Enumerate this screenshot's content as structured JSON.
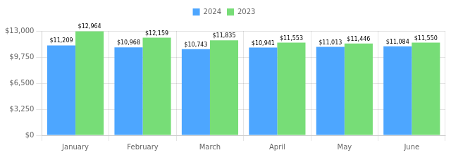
{
  "chart_data": {
    "type": "bar",
    "categories": [
      "January",
      "February",
      "March",
      "April",
      "May",
      "June"
    ],
    "series": [
      {
        "name": "2024",
        "color": "#4da6ff",
        "values": [
          11209,
          10968,
          10743,
          10941,
          11013,
          11084
        ],
        "value_labels": [
          "$11,209",
          "$10,968",
          "$10,743",
          "$10,941",
          "$11,013",
          "$11,084"
        ]
      },
      {
        "name": "2023",
        "color": "#77dd77",
        "values": [
          12964,
          12159,
          11835,
          11553,
          11446,
          11550
        ],
        "value_labels": [
          "$12,964",
          "$12,159",
          "$11,835",
          "$11,553",
          "$11,446",
          "$11,550"
        ]
      }
    ],
    "ylim": [
      0,
      13000
    ],
    "yticks": [
      {
        "value": 0,
        "label": "$0"
      },
      {
        "value": 3250,
        "label": "$3,250"
      },
      {
        "value": 6500,
        "label": "$6,500"
      },
      {
        "value": 9750,
        "label": "$9,750"
      },
      {
        "value": 13000,
        "label": "$13,000"
      }
    ],
    "grid": true,
    "data_labels": true,
    "legend": "top"
  }
}
